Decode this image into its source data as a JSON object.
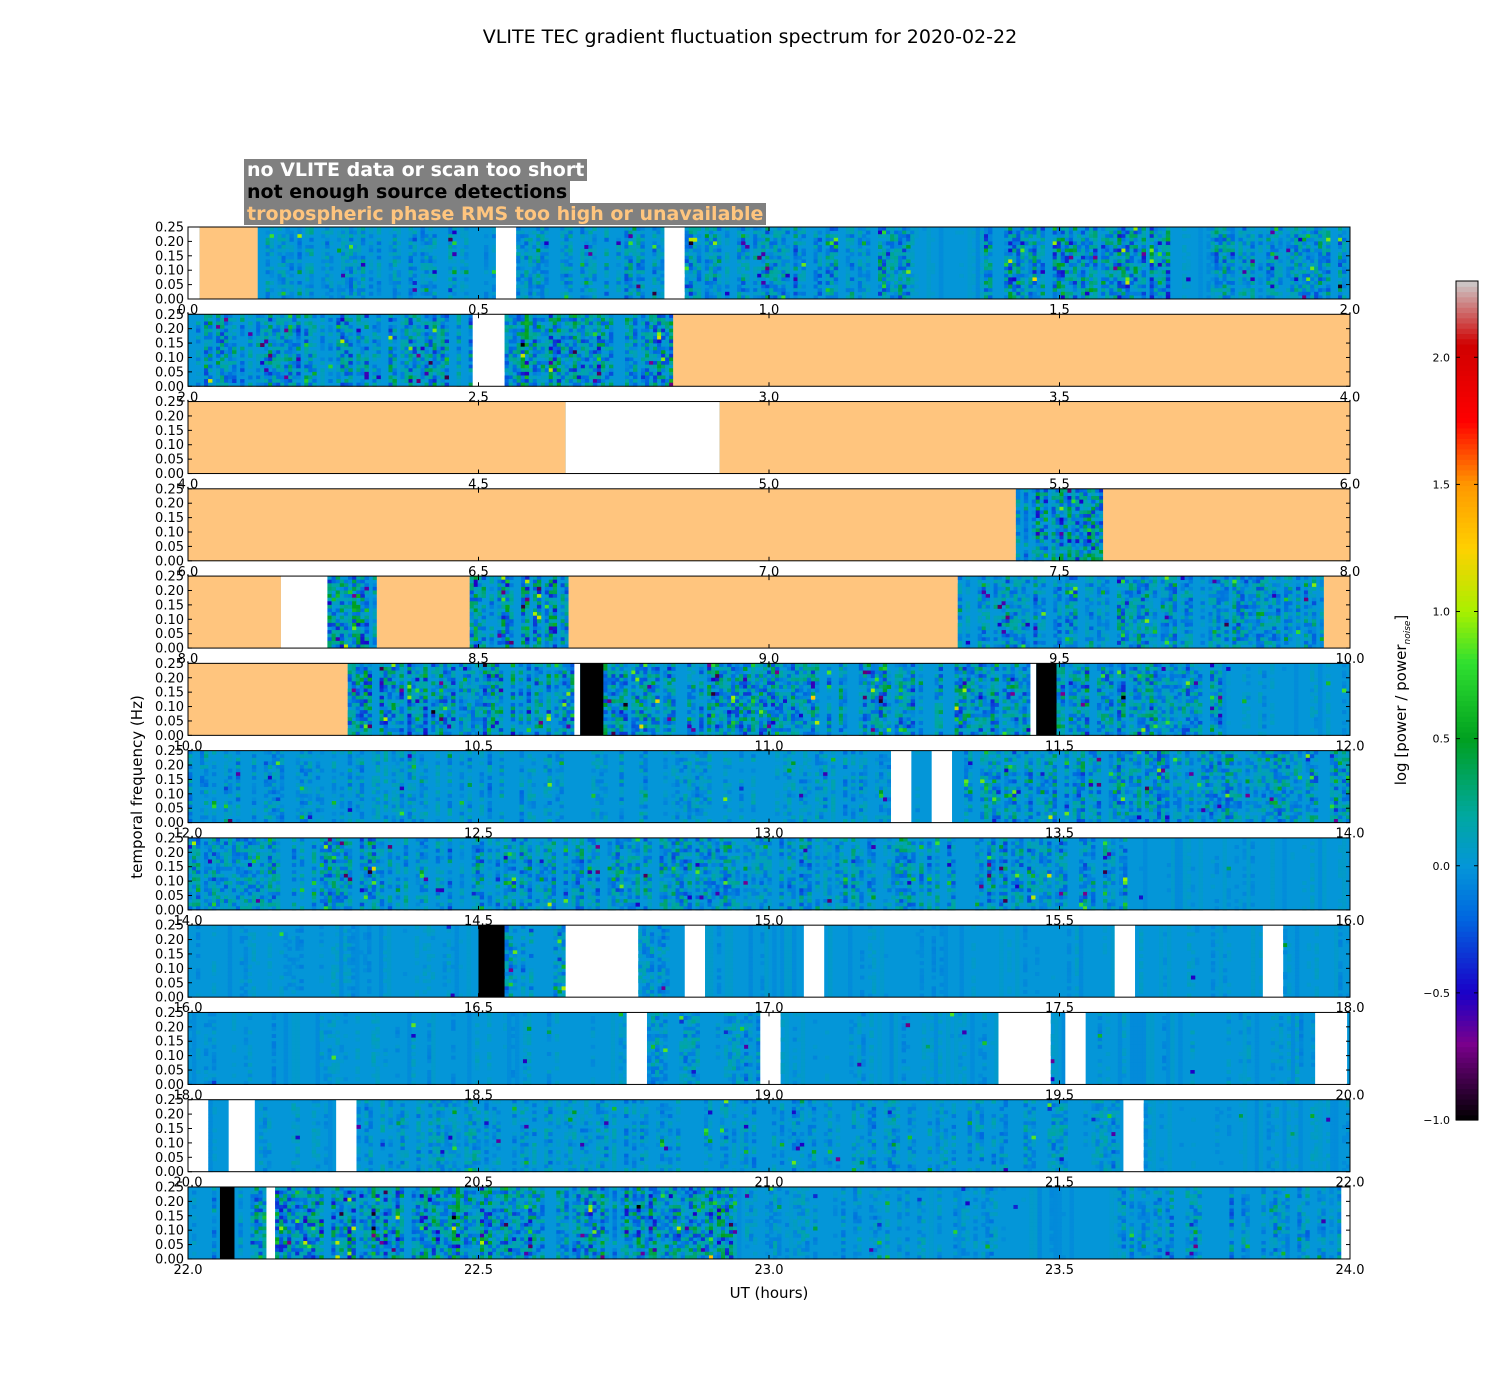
{
  "chart_data": {
    "type": "heatmap",
    "title": "VLITE TEC gradient fluctuation spectrum for 2020-02-22",
    "xlabel": "UT (hours)",
    "ylabel": "temporal frequency (Hz)",
    "ylim": [
      0,
      0.25
    ],
    "y_ticks": [
      "0.00",
      "0.05",
      "0.10",
      "0.15",
      "0.20",
      "0.25"
    ],
    "colorbar": {
      "label": "log [power / power_noise]",
      "label_main": "log [power / power",
      "label_sub": "noise",
      "label_end": "]",
      "range": [
        -1.0,
        2.3
      ],
      "ticks": [
        "−1.0",
        "−0.5",
        "0.0",
        "0.5",
        "1.0",
        "1.5",
        "2.0"
      ],
      "tick_values": [
        -1.0,
        -0.5,
        0.0,
        0.5,
        1.0,
        1.5,
        2.0
      ]
    },
    "legend": {
      "no_data": "no VLITE data or scan too short",
      "few_sources": "not enough source detections",
      "tropo": "tropospheric phase RMS too high or unavailable"
    },
    "status_colors": {
      "no_data": "#ffffff",
      "few_sources": "#000000",
      "tropo": "#ffc57e",
      "baseline": "#0496d8"
    },
    "rows": [
      {
        "start": 0,
        "end": 2,
        "xticks": [
          "0.0",
          "0.5",
          "1.0",
          "1.5",
          "2.0"
        ],
        "segments": [
          {
            "s": 0.0,
            "e": 0.02,
            "t": "nodata"
          },
          {
            "s": 0.02,
            "e": 0.12,
            "t": "tropo"
          },
          {
            "s": 0.12,
            "e": 0.53,
            "t": "data",
            "a": 0.35
          },
          {
            "s": 0.53,
            "e": 0.565,
            "t": "nodata"
          },
          {
            "s": 0.565,
            "e": 0.82,
            "t": "data",
            "a": 0.45
          },
          {
            "s": 0.82,
            "e": 0.855,
            "t": "nodata"
          },
          {
            "s": 0.855,
            "e": 1.25,
            "t": "data",
            "a": 0.55
          },
          {
            "s": 1.25,
            "e": 1.37,
            "t": "data",
            "a": 0.05
          },
          {
            "s": 1.37,
            "e": 1.69,
            "t": "data",
            "a": 0.8
          },
          {
            "s": 1.69,
            "e": 1.76,
            "t": "data",
            "a": 0.05
          },
          {
            "s": 1.76,
            "e": 2.0,
            "t": "data",
            "a": 0.6
          }
        ]
      },
      {
        "start": 2,
        "end": 4,
        "xticks": [
          "2.0",
          "2.5",
          "3.0",
          "3.5",
          "4.0"
        ],
        "segments": [
          {
            "s": 2.0,
            "e": 2.49,
            "t": "data",
            "a": 0.6
          },
          {
            "s": 2.49,
            "e": 2.545,
            "t": "nodata"
          },
          {
            "s": 2.545,
            "e": 2.835,
            "t": "data",
            "a": 0.9
          },
          {
            "s": 2.835,
            "e": 4.0,
            "t": "tropo"
          }
        ]
      },
      {
        "start": 4,
        "end": 6,
        "xticks": [
          "4.0",
          "4.5",
          "5.0",
          "5.5",
          "6.0"
        ],
        "segments": [
          {
            "s": 4.0,
            "e": 4.65,
            "t": "tropo"
          },
          {
            "s": 4.65,
            "e": 4.915,
            "t": "nodata"
          },
          {
            "s": 4.915,
            "e": 6.0,
            "t": "tropo"
          }
        ]
      },
      {
        "start": 6,
        "end": 8,
        "xticks": [
          "6.0",
          "6.5",
          "7.0",
          "7.5",
          "8.0"
        ],
        "segments": [
          {
            "s": 6.0,
            "e": 7.425,
            "t": "tropo"
          },
          {
            "s": 7.425,
            "e": 7.575,
            "t": "data",
            "a": 0.9
          },
          {
            "s": 7.575,
            "e": 8.0,
            "t": "tropo"
          }
        ]
      },
      {
        "start": 8,
        "end": 10,
        "xticks": [
          "8.0",
          "8.5",
          "9.0",
          "9.5",
          "10.0"
        ],
        "segments": [
          {
            "s": 8.0,
            "e": 8.16,
            "t": "tropo"
          },
          {
            "s": 8.16,
            "e": 8.24,
            "t": "nodata"
          },
          {
            "s": 8.24,
            "e": 8.325,
            "t": "data",
            "a": 0.9
          },
          {
            "s": 8.325,
            "e": 8.485,
            "t": "tropo"
          },
          {
            "s": 8.485,
            "e": 8.655,
            "t": "data",
            "a": 0.9
          },
          {
            "s": 8.655,
            "e": 9.325,
            "t": "tropo"
          },
          {
            "s": 9.325,
            "e": 9.955,
            "t": "data",
            "a": 0.55
          },
          {
            "s": 9.955,
            "e": 10.0,
            "t": "tropo"
          }
        ]
      },
      {
        "start": 10,
        "end": 12,
        "xticks": [
          "10.0",
          "10.5",
          "11.0",
          "11.5",
          "12.0"
        ],
        "segments": [
          {
            "s": 10.0,
            "e": 10.275,
            "t": "tropo"
          },
          {
            "s": 10.275,
            "e": 10.665,
            "t": "data",
            "a": 0.8
          },
          {
            "s": 10.665,
            "e": 10.675,
            "t": "nodata"
          },
          {
            "s": 10.675,
            "e": 10.715,
            "t": "few"
          },
          {
            "s": 10.715,
            "e": 11.45,
            "t": "data",
            "a": 0.7
          },
          {
            "s": 11.45,
            "e": 11.46,
            "t": "nodata"
          },
          {
            "s": 11.46,
            "e": 11.495,
            "t": "few"
          },
          {
            "s": 11.495,
            "e": 11.78,
            "t": "data",
            "a": 0.75
          },
          {
            "s": 11.78,
            "e": 12.0,
            "t": "data",
            "a": 0.15
          }
        ]
      },
      {
        "start": 12,
        "end": 14,
        "xticks": [
          "12.0",
          "12.5",
          "13.0",
          "13.5",
          "14.0"
        ],
        "segments": [
          {
            "s": 12.0,
            "e": 13.21,
            "t": "data",
            "a": 0.35
          },
          {
            "s": 13.21,
            "e": 13.245,
            "t": "nodata"
          },
          {
            "s": 13.245,
            "e": 13.28,
            "t": "data",
            "a": 0.1
          },
          {
            "s": 13.28,
            "e": 13.315,
            "t": "nodata"
          },
          {
            "s": 13.315,
            "e": 14.0,
            "t": "data",
            "a": 0.6
          }
        ]
      },
      {
        "start": 14,
        "end": 16,
        "xticks": [
          "14.0",
          "14.5",
          "15.0",
          "15.5",
          "16.0"
        ],
        "segments": [
          {
            "s": 14.0,
            "e": 15.63,
            "t": "data",
            "a": 0.55
          },
          {
            "s": 15.63,
            "e": 16.0,
            "t": "data",
            "a": 0.08
          }
        ]
      },
      {
        "start": 16,
        "end": 18,
        "xticks": [
          "16.0",
          "16.5",
          "17.0",
          "17.5",
          "18.0"
        ],
        "segments": [
          {
            "s": 16.0,
            "e": 16.5,
            "t": "data",
            "a": 0.12
          },
          {
            "s": 16.5,
            "e": 16.545,
            "t": "few"
          },
          {
            "s": 16.545,
            "e": 16.65,
            "t": "data",
            "a": 0.45
          },
          {
            "s": 16.65,
            "e": 16.775,
            "t": "nodata"
          },
          {
            "s": 16.775,
            "e": 16.855,
            "t": "data",
            "a": 0.3
          },
          {
            "s": 16.855,
            "e": 16.89,
            "t": "nodata"
          },
          {
            "s": 16.89,
            "e": 17.06,
            "t": "data",
            "a": 0.08
          },
          {
            "s": 17.06,
            "e": 17.095,
            "t": "nodata"
          },
          {
            "s": 17.095,
            "e": 17.595,
            "t": "data",
            "a": 0.08
          },
          {
            "s": 17.595,
            "e": 17.63,
            "t": "nodata"
          },
          {
            "s": 17.63,
            "e": 17.85,
            "t": "data",
            "a": 0.08
          },
          {
            "s": 17.85,
            "e": 17.885,
            "t": "nodata"
          },
          {
            "s": 17.885,
            "e": 18.0,
            "t": "data",
            "a": 0.08
          }
        ]
      },
      {
        "start": 18,
        "end": 20,
        "xticks": [
          "18.0",
          "18.5",
          "19.0",
          "19.5",
          "20.0"
        ],
        "segments": [
          {
            "s": 18.0,
            "e": 18.755,
            "t": "data",
            "a": 0.15
          },
          {
            "s": 18.755,
            "e": 18.79,
            "t": "nodata"
          },
          {
            "s": 18.79,
            "e": 18.985,
            "t": "data",
            "a": 0.35
          },
          {
            "s": 18.985,
            "e": 19.02,
            "t": "nodata"
          },
          {
            "s": 19.02,
            "e": 19.395,
            "t": "data",
            "a": 0.15
          },
          {
            "s": 19.395,
            "e": 19.485,
            "t": "nodata"
          },
          {
            "s": 19.485,
            "e": 19.51,
            "t": "data",
            "a": 0.1
          },
          {
            "s": 19.51,
            "e": 19.545,
            "t": "nodata"
          },
          {
            "s": 19.545,
            "e": 19.94,
            "t": "data",
            "a": 0.15
          },
          {
            "s": 19.94,
            "e": 19.995,
            "t": "nodata"
          },
          {
            "s": 19.995,
            "e": 20.0,
            "t": "data",
            "a": 0.05
          }
        ]
      },
      {
        "start": 20,
        "end": 22,
        "xticks": [
          "20.0",
          "20.5",
          "21.0",
          "21.5",
          "22.0"
        ],
        "segments": [
          {
            "s": 20.0,
            "e": 20.035,
            "t": "nodata"
          },
          {
            "s": 20.035,
            "e": 20.07,
            "t": "data",
            "a": 0.05
          },
          {
            "s": 20.07,
            "e": 20.115,
            "t": "nodata"
          },
          {
            "s": 20.115,
            "e": 20.255,
            "t": "data",
            "a": 0.25
          },
          {
            "s": 20.255,
            "e": 20.29,
            "t": "nodata"
          },
          {
            "s": 20.29,
            "e": 21.61,
            "t": "data",
            "a": 0.35
          },
          {
            "s": 21.61,
            "e": 21.645,
            "t": "nodata"
          },
          {
            "s": 21.645,
            "e": 22.0,
            "t": "data",
            "a": 0.12
          }
        ]
      },
      {
        "start": 22,
        "end": 24,
        "xticks": [
          "22.0",
          "22.5",
          "23.0",
          "23.5",
          "24.0"
        ],
        "segments": [
          {
            "s": 22.0,
            "e": 22.055,
            "t": "data",
            "a": 0.4
          },
          {
            "s": 22.055,
            "e": 22.08,
            "t": "few"
          },
          {
            "s": 22.08,
            "e": 22.135,
            "t": "data",
            "a": 0.6
          },
          {
            "s": 22.135,
            "e": 22.15,
            "t": "nodata"
          },
          {
            "s": 22.15,
            "e": 22.945,
            "t": "data",
            "a": 0.85
          },
          {
            "s": 22.945,
            "e": 23.4,
            "t": "data",
            "a": 0.25
          },
          {
            "s": 23.4,
            "e": 23.6,
            "t": "data",
            "a": 0.05
          },
          {
            "s": 23.6,
            "e": 23.985,
            "t": "data",
            "a": 0.45
          },
          {
            "s": 23.985,
            "e": 24.0,
            "t": "nodata"
          }
        ]
      }
    ]
  }
}
